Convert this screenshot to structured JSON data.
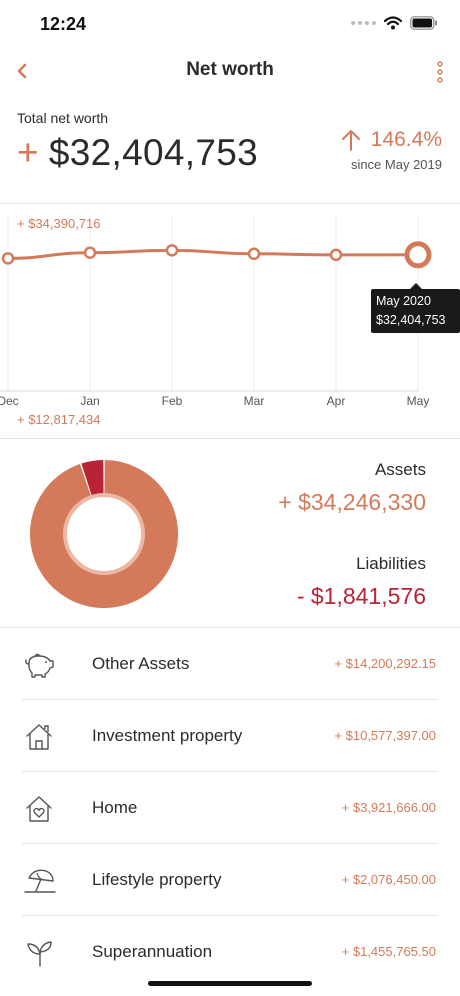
{
  "status_bar": {
    "time": "12:24"
  },
  "nav": {
    "title": "Net worth"
  },
  "summary": {
    "label": "Total net worth",
    "sign": "+",
    "value": "$32,404,753",
    "change": "146.4%",
    "since": "since May 2019"
  },
  "chart": {
    "max_label": "+ $34,390,716",
    "min_label": "+ $12,817,434",
    "tooltip_date": "May 2020",
    "tooltip_value": "$32,404,753"
  },
  "chart_data": {
    "type": "line",
    "x": [
      "Dec",
      "Jan",
      "Feb",
      "Mar",
      "Apr",
      "May"
    ],
    "series": [
      {
        "values": [
          31900000,
          32700000,
          33050000,
          32550000,
          32400000,
          32404753
        ]
      }
    ],
    "ylim": [
      12817434,
      34390716
    ],
    "grid": true,
    "colors": {
      "line": "#d47a5a"
    }
  },
  "breakdown": {
    "assets_label": "Assets",
    "assets_value": "+ $34,246,330",
    "liabilities_label": "Liabilities",
    "liabilities_value": "- $1,841,576",
    "assets_amount": 34246330,
    "liabilities_amount": 1841576,
    "colors": {
      "assets": "#d47a5a",
      "liabilities": "#b82335"
    }
  },
  "assets": [
    {
      "name": "Other Assets",
      "amount": "+ $14,200,292.15",
      "icon": "piggy-bank-icon"
    },
    {
      "name": "Investment property",
      "amount": "+ $10,577,397.00",
      "icon": "house-icon"
    },
    {
      "name": "Home",
      "amount": "+ $3,921,666.00",
      "icon": "home-heart-icon"
    },
    {
      "name": "Lifestyle property",
      "amount": "+ $2,076,450.00",
      "icon": "beach-umbrella-icon"
    },
    {
      "name": "Superannuation",
      "amount": "+ $1,455,765.50",
      "icon": "plant-sprout-icon"
    }
  ]
}
